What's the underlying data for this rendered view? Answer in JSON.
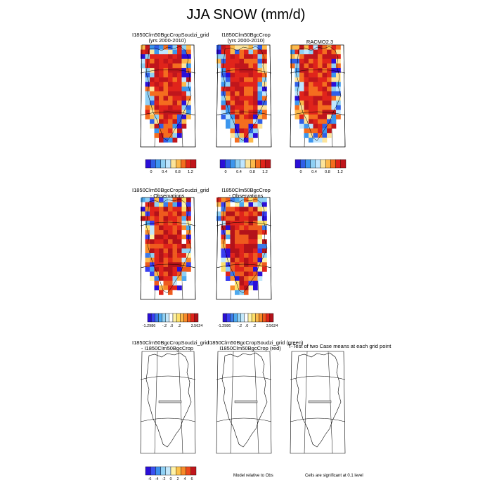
{
  "page": {
    "title": "JJA SNOW (mm/d)"
  },
  "row1": {
    "panels": [
      {
        "title_line1": "I1850Clm50BgcCropSoudzi_grid",
        "title_line2": "(yrs 2000-2010)"
      },
      {
        "title_line1": "I1850Clm50BgcCrop",
        "title_line2": "(yrs 2000-2010)"
      },
      {
        "title_line1": "RACMO2.3",
        "title_line2": ""
      }
    ],
    "colorbar_ticks": [
      "0",
      "0.4",
      "0.8",
      "1.2"
    ]
  },
  "row2": {
    "panels": [
      {
        "title_line1": "I1850Clm50BgcCropSoudzi_grid",
        "title_line2": "- Observations"
      },
      {
        "title_line1": "I1850Clm50BgcCrop",
        "title_line2": "- Observations"
      }
    ],
    "colorbar_ticks": [
      "-1.2986",
      "-.2",
      ".0",
      ".2",
      "3.5624"
    ]
  },
  "row3": {
    "panel1_title_line1": "I1850Clm50BgcCropSoudzi_grid",
    "panel1_title_line2": "- I1850Clm50BgcCrop",
    "panel2_title_line1": "I1850Clm50BgcCropSoudzi_grid (green)",
    "panel2_title_line2": "I1850Clm50BgcCrop (red)",
    "panel3_title": "T-Test of two Case means at each grid point",
    "colorbar_ticks": [
      "-6",
      "-4",
      "-2",
      "0",
      "2",
      "4",
      "6"
    ],
    "note_middle": "Model relative to Obs",
    "note_right": "Cells are significant at 0.1 level"
  },
  "colors": {
    "scale_abs": [
      "#2b0fd8",
      "#2f5fe8",
      "#3c96ee",
      "#8fd0f4",
      "#bfe6ff",
      "#fde49a",
      "#fcb94b",
      "#f46d1f",
      "#e0241b",
      "#c0161c"
    ],
    "scale_diff": [
      "#2b0fd8",
      "#3a3ef0",
      "#3c7ae8",
      "#4ea9ee",
      "#8fd0f4",
      "#c3e7fa",
      "#ffffff",
      "#fff3a8",
      "#fde06a",
      "#fcb94b",
      "#f78b2a",
      "#ee5a1e",
      "#e0241b",
      "#b3121a"
    ],
    "scale_ttest": [
      "#2b0fd8",
      "#3a50f0",
      "#3c90ee",
      "#8fd0f4",
      "#c3e7fa",
      "#fff3a8",
      "#fcc24b",
      "#f78b2a",
      "#ee4a1e",
      "#c0161c"
    ]
  },
  "chart_data": [
    {
      "type": "heatmap",
      "title": "I1850Clm50BgcCropSoudzi_grid (yrs 2000-2010)",
      "colorbar_ticks": [
        0,
        0.4,
        0.8,
        1.2
      ]
    },
    {
      "type": "heatmap",
      "title": "I1850Clm50BgcCrop (yrs 2000-2010)",
      "colorbar_ticks": [
        0,
        0.4,
        0.8,
        1.2
      ]
    },
    {
      "type": "heatmap",
      "title": "RACMO2.3",
      "colorbar_ticks": [
        0,
        0.4,
        0.8,
        1.2
      ]
    },
    {
      "type": "heatmap",
      "title": "I1850Clm50BgcCropSoudzi_grid - Observations",
      "colorbar_range": [
        -1.2986,
        3.5624
      ]
    },
    {
      "type": "heatmap",
      "title": "I1850Clm50BgcCrop - Observations",
      "colorbar_range": [
        -1.2986,
        3.5624
      ]
    },
    {
      "type": "heatmap",
      "title": "I1850Clm50BgcCropSoudzi_grid - I1850Clm50BgcCrop",
      "colorbar_ticks": [
        -6,
        -4,
        -2,
        0,
        2,
        4,
        6
      ]
    }
  ]
}
